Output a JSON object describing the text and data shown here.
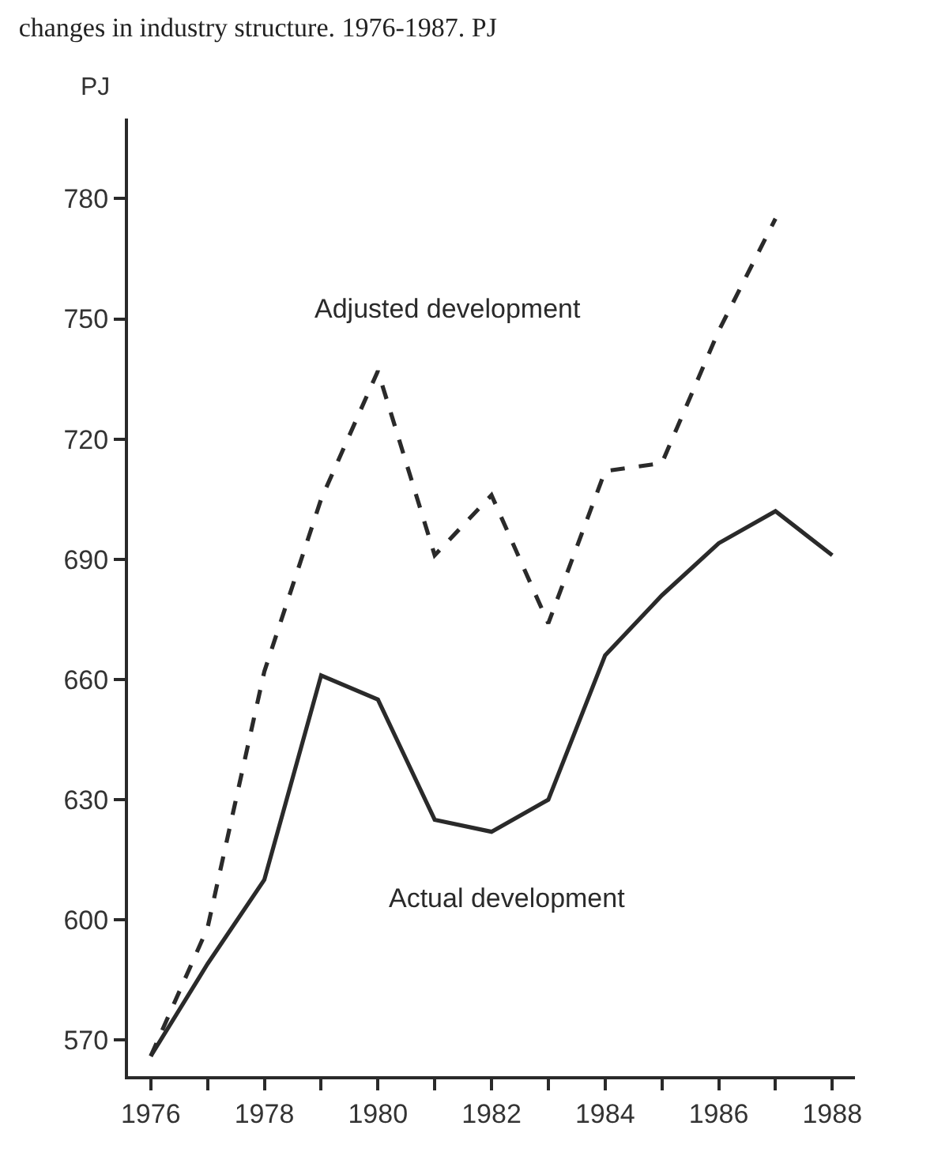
{
  "chart_data": {
    "type": "line",
    "title": "changes in industry structure. 1976-1987. PJ",
    "ylabel": "PJ",
    "x": [
      1976,
      1977,
      1978,
      1979,
      1980,
      1981,
      1982,
      1983,
      1984,
      1985,
      1986,
      1987,
      1988
    ],
    "series": [
      {
        "name": "Actual development",
        "color": "#2a2a2a",
        "line_style": "solid",
        "values": [
          566,
          589,
          610,
          661,
          655,
          625,
          622,
          630,
          666,
          681,
          694,
          702,
          691
        ]
      },
      {
        "name": "Adjusted development",
        "color": "#2a2a2a",
        "line_style": "dashed",
        "values": [
          566,
          598,
          662,
          705,
          737,
          691,
          706,
          674,
          712,
          714,
          747,
          775,
          null
        ]
      }
    ],
    "xlim": [
      1975.6,
      1988.4
    ],
    "xticks": [
      1976,
      {
        "value": 1977,
        "label": null
      },
      1978,
      {
        "value": 1979,
        "label": null
      },
      1980,
      {
        "value": 1981,
        "label": null
      },
      1982,
      {
        "value": 1983,
        "label": null
      },
      1984,
      {
        "value": 1985,
        "label": null
      },
      1986,
      {
        "value": 1987,
        "label": null
      },
      1988
    ],
    "ylim": [
      561,
      800
    ],
    "yticks": [
      570,
      600,
      630,
      660,
      690,
      720,
      750,
      780
    ],
    "legend": false,
    "marker": "none"
  }
}
